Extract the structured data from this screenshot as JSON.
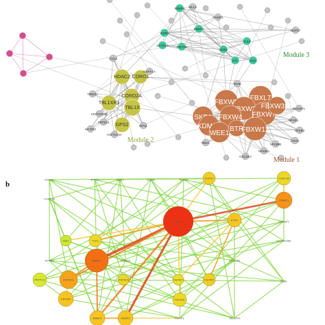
{
  "panel_a": {
    "module_labels": {
      "module1": "Module 1",
      "module2": "Module 2",
      "module3": "Module 3"
    },
    "colors": {
      "module1": "#c8784a",
      "module2": "#c5c445",
      "module3": "#3fc79c",
      "pink": "#d04f8e",
      "gray": "#c4c4c4",
      "green_text": "#2e8b2e",
      "module2_text": "#8ea33a",
      "module1_text": "#a0522d"
    },
    "nodes": [
      {
        "id": "SKP1",
        "label": "SKP1",
        "group": "module1"
      },
      {
        "id": "FBXW5",
        "label": "FBXW5",
        "group": "module1"
      },
      {
        "id": "FBXL7",
        "label": "FBXL7",
        "group": "module1"
      },
      {
        "id": "FBXW2",
        "label": "FBXW2",
        "group": "module1"
      },
      {
        "id": "KDM2A",
        "label": "KDM2A",
        "group": "module1"
      },
      {
        "id": "FBXW4",
        "label": "FBXW4",
        "group": "module1"
      },
      {
        "id": "FBXW7",
        "label": "FBXW7",
        "group": "module1"
      },
      {
        "id": "WEE1",
        "label": "WEE1",
        "group": "module1"
      },
      {
        "id": "BTR",
        "label": "BTR",
        "group": "module1"
      },
      {
        "id": "FBXW11",
        "label": "FBXW11",
        "group": "module1"
      },
      {
        "id": "FBXW3P1",
        "label": "FBXW3P1",
        "group": "module1"
      },
      {
        "id": "HDAC2",
        "label": "HDAC2",
        "group": "module2"
      },
      {
        "id": "CORO1",
        "label": "CORO1",
        "group": "module2"
      },
      {
        "id": "CORO2A",
        "label": "CORO2A",
        "group": "module2"
      },
      {
        "id": "TBL1XR1",
        "label": "TBL1XR1",
        "group": "module2"
      },
      {
        "id": "TBL1X",
        "label": "TBL1X",
        "group": "module2"
      },
      {
        "id": "GPS2",
        "label": "GPS2",
        "group": "module2"
      },
      {
        "id": "MYB",
        "label": "MYB",
        "group": "gray"
      },
      {
        "id": "RASSF1",
        "label": "RASSF1",
        "group": "gray"
      },
      {
        "id": "NFKB1",
        "label": "NFKB1",
        "group": "gray"
      },
      {
        "id": "NFKB2",
        "label": "NFKB2",
        "group": "gray"
      },
      {
        "id": "NFKBIB",
        "label": "NFKBIB",
        "group": "gray"
      },
      {
        "id": "CHUK",
        "label": "CHUK",
        "group": "gray"
      },
      {
        "id": "CDC25A",
        "label": "CDC25A",
        "group": "gray"
      },
      {
        "id": "NFKBIA",
        "label": "NFKBIA",
        "group": "gray"
      },
      {
        "id": "RBX1",
        "label": "RBX1",
        "group": "gray"
      },
      {
        "id": "KIF11",
        "label": "KIF11",
        "group": "gray"
      },
      {
        "id": "HSPA1A",
        "label": "HSPA1A",
        "group": "gray"
      },
      {
        "id": "TRIM37",
        "label": "TRIM37",
        "group": "gray"
      },
      {
        "id": "HIST2H2BE",
        "label": "HIST2H2BE",
        "group": "gray"
      },
      {
        "id": "ZBTB33",
        "label": "ZBTB33",
        "group": "gray"
      },
      {
        "id": "NCOR2",
        "label": "NCOR2",
        "group": "gray"
      },
      {
        "id": "HIST1H4A",
        "label": "HIST1H4A",
        "group": "gray"
      },
      {
        "id": "CUL3",
        "label": "CUL3",
        "group": "gray"
      },
      {
        "id": "TLE2",
        "label": "TLE2",
        "group": "module3"
      },
      {
        "id": "EED",
        "label": "EED",
        "group": "module3"
      },
      {
        "id": "GTL",
        "label": "GTL",
        "group": "module3"
      },
      {
        "id": "DDB1",
        "label": "DDB1",
        "group": "module3"
      },
      {
        "id": "NUP37",
        "label": "NUP37",
        "group": "gray"
      },
      {
        "id": "MLL3",
        "label": "MLL3",
        "group": "gray"
      },
      {
        "id": "RBBP5",
        "label": "RBBP5",
        "group": "module3"
      },
      {
        "id": "RBBP7",
        "label": "RBBP7",
        "group": "module3"
      },
      {
        "id": "WDR5",
        "label": "WDR5",
        "group": "module3"
      },
      {
        "id": "SETD1A",
        "label": "SETD1A",
        "group": "module3"
      },
      {
        "id": "KMT2B",
        "label": "KMT2B",
        "group": "module3"
      },
      {
        "id": "PAXIP1",
        "label": "PAXIP1",
        "group": "gray"
      },
      {
        "id": "p1",
        "label": "",
        "group": "pink"
      },
      {
        "id": "p2",
        "label": "",
        "group": "pink"
      },
      {
        "id": "p3",
        "label": "",
        "group": "pink"
      },
      {
        "id": "p4",
        "label": "",
        "group": "pink"
      }
    ]
  },
  "panel_b": {
    "panel_letter": "b",
    "nodes": [
      {
        "id": "HDAC1",
        "label": "HDAC1",
        "score": 0.05
      },
      {
        "id": "APPL1",
        "label": "APPL1",
        "score": 0.05
      },
      {
        "id": "DDB1",
        "label": "DDB1",
        "score": 0.05
      },
      {
        "id": "DDHA",
        "label": "DDHA",
        "score": 0.05
      },
      {
        "id": "NUP43",
        "label": "NUP43",
        "score": 0.05
      },
      {
        "id": "NUP37",
        "label": "NUP37",
        "score": 0.55
      },
      {
        "id": "CHAF1B",
        "label": "CHAF1B",
        "score": 0.5
      },
      {
        "id": "CHAF1A",
        "label": "CHAF1A",
        "score": 0.05
      },
      {
        "id": "WDR5",
        "label": "WDR5",
        "score": 1.0
      },
      {
        "id": "GRWD1",
        "label": "GRWD1",
        "score": 0.75
      },
      {
        "id": "BTRC",
        "label": "BTRC",
        "score": 0.6
      },
      {
        "id": "SHC8P1",
        "label": "SHC8P1",
        "score": 0.05
      },
      {
        "id": "EED",
        "label": "EED",
        "score": 0.3
      },
      {
        "id": "TLE2",
        "label": "TLE2",
        "score": 0.5
      },
      {
        "id": "HIST2H2BE",
        "label": "HIST2H2BE",
        "score": 0.05
      },
      {
        "id": "NFKB1",
        "label": "NFKB1",
        "score": 0.05
      },
      {
        "id": "RBBP7",
        "label": "RBBP7",
        "score": 0.85
      },
      {
        "id": "KDM2A",
        "label": "KDM2A",
        "score": 0.05
      },
      {
        "id": "CDC25A",
        "label": "CDC25A",
        "score": 0.05
      },
      {
        "id": "PRPF19",
        "label": "PRPF19",
        "score": 0.35
      },
      {
        "id": "FBXW11",
        "label": "FBXW11",
        "score": 0.7
      },
      {
        "id": "FBXW2",
        "label": "FBXW2",
        "score": 0.5
      },
      {
        "id": "FBXW7",
        "label": "FBXW7",
        "score": 0.45
      },
      {
        "id": "FBXW5",
        "label": "FBXW5",
        "score": 0.55
      },
      {
        "id": "FBXW8",
        "label": "FBXW8",
        "score": 0.6
      },
      {
        "id": "COBL",
        "label": "COBL",
        "score": 0.05
      },
      {
        "id": "FBXW8b",
        "label": "FBXW8",
        "score": 0.5
      },
      {
        "id": "RBBP4",
        "label": "RBBP4",
        "score": 0.6
      },
      {
        "id": "RBBP5",
        "label": "RBBP5",
        "score": 0.6
      },
      {
        "id": "PAXIP1",
        "label": "PAXIP1",
        "score": 0.05
      },
      {
        "id": "TBL1XR1",
        "label": "TBL1XR1",
        "score": 0.05
      }
    ]
  }
}
